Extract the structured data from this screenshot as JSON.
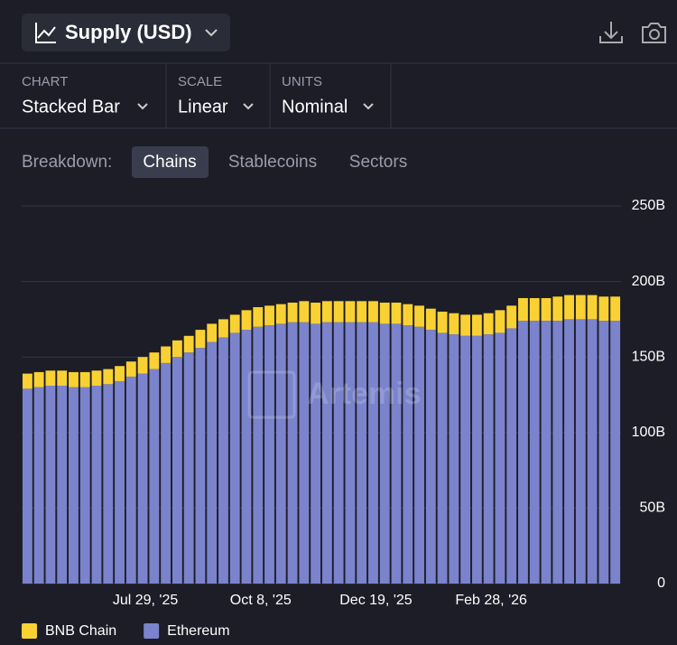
{
  "ui": {
    "header": {
      "title": "Supply (USD)"
    },
    "controls": [
      {
        "label": "CHART",
        "value": "Stacked Bar"
      },
      {
        "label": "SCALE",
        "value": "Linear"
      },
      {
        "label": "UNITS",
        "value": "Nominal"
      }
    ],
    "breakdown": {
      "label": "Breakdown:",
      "options": [
        "Chains",
        "Stablecoins",
        "Sectors"
      ],
      "selected": "Chains"
    },
    "watermark": "Artemis"
  },
  "chart_data": {
    "type": "stacked-bar",
    "categories": [
      null,
      null,
      null,
      null,
      null,
      null,
      null,
      null,
      null,
      null,
      "Jul 29, '25",
      null,
      null,
      null,
      null,
      null,
      null,
      null,
      null,
      null,
      "Oct 8, '25",
      null,
      null,
      null,
      null,
      null,
      null,
      null,
      null,
      null,
      "Dec 19, '25",
      null,
      null,
      null,
      null,
      null,
      null,
      null,
      null,
      null,
      "Feb 28, '26",
      null,
      null,
      null,
      null,
      null,
      null,
      null,
      null,
      null,
      null,
      null
    ],
    "series": [
      {
        "name": "BNB Chain",
        "color": "#f9d133",
        "values": [
          10,
          10,
          10,
          10,
          10,
          10,
          10,
          10,
          10,
          10,
          11,
          11,
          11,
          11,
          11,
          12,
          12,
          12,
          12,
          13,
          13,
          13,
          13,
          13,
          14,
          14,
          14,
          14,
          14,
          14,
          14,
          14,
          14,
          14,
          14,
          14,
          14,
          14,
          14,
          14,
          14,
          15,
          15,
          15,
          15,
          15,
          16,
          16,
          16,
          16,
          16,
          16
        ]
      },
      {
        "name": "Ethereum",
        "color": "#7b83cc",
        "values": [
          129,
          130,
          131,
          131,
          130,
          130,
          131,
          132,
          134,
          137,
          139,
          142,
          146,
          150,
          153,
          156,
          160,
          163,
          166,
          168,
          170,
          171,
          172,
          173,
          173,
          172,
          173,
          173,
          173,
          173,
          173,
          172,
          172,
          171,
          170,
          168,
          166,
          165,
          164,
          164,
          165,
          166,
          169,
          174,
          174,
          174,
          174,
          175,
          175,
          175,
          174,
          174
        ]
      }
    ],
    "ylim": [
      0,
      250
    ],
    "yticks": [
      0,
      {
        "value": 50,
        "label": "50B"
      },
      {
        "value": 100,
        "label": "100B"
      },
      {
        "value": 150,
        "label": "150B"
      },
      {
        "value": 200,
        "label": "200B"
      },
      {
        "value": 250,
        "label": "250B"
      }
    ],
    "grid": true
  }
}
